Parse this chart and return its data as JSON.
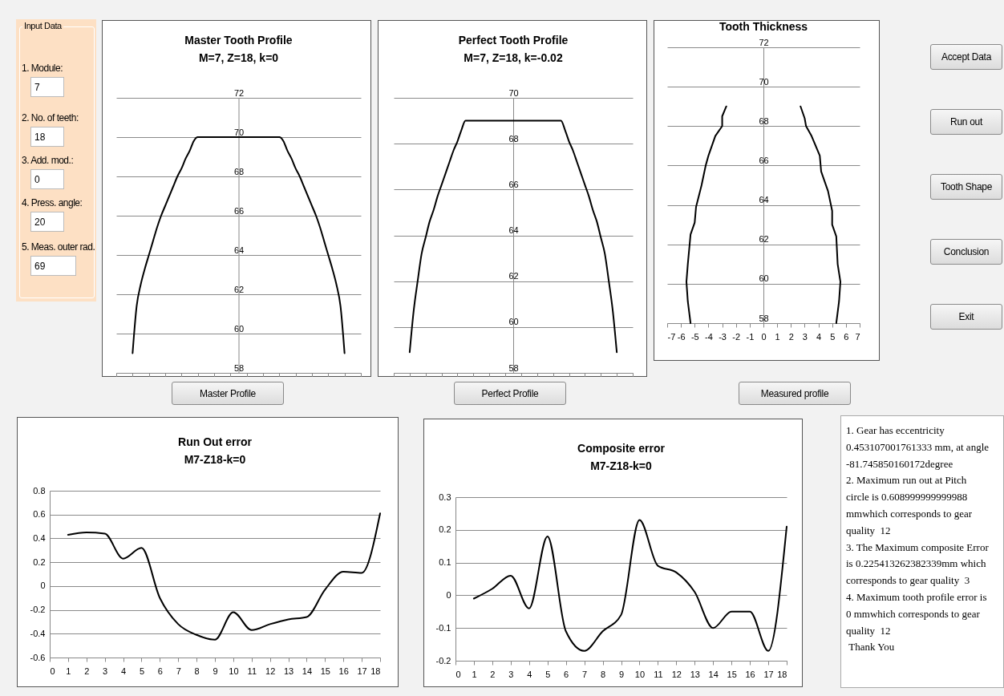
{
  "chart_data": [
    {
      "type": "other",
      "title": "Input Data",
      "annotations": [
        "1. Module:",
        "7",
        "2. No. of teeth:",
        "18",
        "3. Add. mod.:",
        "0",
        "4. Press. angle:",
        "20",
        "5. Meas. outer rad.",
        "69"
      ]
    },
    {
      "type": "line",
      "title": "Master Tooth Profile",
      "subtitle": "M=7, Z=18, k=0",
      "categories": [
        null,
        null,
        null,
        null,
        null,
        null,
        null,
        null,
        null,
        null,
        null,
        null,
        null,
        null,
        null,
        null,
        null,
        null,
        null,
        null,
        null,
        null,
        null,
        null,
        null,
        null,
        null,
        null,
        null,
        null,
        null,
        null,
        null,
        null,
        null,
        null,
        null,
        null,
        null,
        null,
        null,
        null,
        null,
        null,
        null,
        null,
        null,
        null,
        null,
        null,
        null,
        null,
        null,
        null,
        null,
        null,
        null,
        null,
        null,
        null,
        null
      ],
      "values": [
        null,
        null,
        null,
        null,
        59,
        61.4,
        62.5,
        63.3,
        64,
        64.7,
        65.4,
        66,
        66.5,
        67,
        67.5,
        68,
        68.4,
        68.9,
        69.3,
        69.8,
        70,
        70,
        70,
        70,
        70,
        70,
        70,
        70,
        70,
        70,
        70,
        70,
        70,
        70,
        70,
        70,
        70,
        70,
        70,
        70,
        70,
        69.8,
        69.3,
        68.9,
        68.4,
        68,
        67.5,
        67,
        66.5,
        66,
        65.4,
        64.7,
        64,
        63.3,
        62.5,
        61.4,
        59,
        null,
        null,
        null,
        null
      ],
      "color": "#000000",
      "ylim": [
        58,
        72
      ],
      "yticks": [
        58,
        60,
        62,
        64,
        66,
        68,
        70,
        72
      ],
      "grid": "y",
      "tick_labels": "y",
      "annotations": [
        "Master Profile"
      ]
    },
    {
      "type": "line",
      "title": "Perfect Tooth Profile",
      "subtitle": "M=7, Z=18, k=-0.02",
      "categories": [
        null,
        null,
        null,
        null,
        null,
        null,
        null,
        null,
        null,
        null,
        null,
        null,
        null,
        null,
        null,
        null,
        null,
        null,
        null,
        null,
        null,
        null,
        null,
        null,
        null,
        null,
        null,
        null,
        null,
        null,
        null,
        null,
        null,
        null,
        null,
        null,
        null,
        null,
        null,
        null,
        null,
        null,
        null,
        null,
        null,
        null,
        null,
        null,
        null,
        null,
        null,
        null,
        null,
        null,
        null,
        null,
        null,
        null,
        null,
        null,
        null
      ],
      "values": [
        null,
        null,
        null,
        null,
        58.9,
        60.7,
        62,
        63.2,
        63.9,
        64.6,
        65.1,
        65.7,
        66.2,
        66.7,
        67.2,
        67.7,
        68.1,
        68.6,
        69,
        69,
        69,
        69,
        69,
        69,
        69,
        69,
        69,
        69,
        69,
        69,
        69,
        69,
        69,
        69,
        69,
        69,
        69,
        69,
        69,
        69,
        69,
        69,
        69,
        68.6,
        68.1,
        67.7,
        67.2,
        66.7,
        66.2,
        65.7,
        65.1,
        64.6,
        63.9,
        63.2,
        62,
        60.7,
        58.9,
        null,
        null,
        null,
        null
      ],
      "color": "#000000",
      "ylim": [
        58,
        70
      ],
      "yticks": [
        58,
        60,
        62,
        64,
        66,
        68,
        70
      ],
      "grid": "y",
      "tick_labels": "y",
      "annotations": [
        "Perfect Profile"
      ]
    },
    {
      "type": "line",
      "title": "Tooth Thickness",
      "series": [
        {
          "color": "#000000",
          "x": [
            -2.7,
            -3,
            -3,
            -3.5,
            -4,
            -4.2,
            -4.5,
            -4.9,
            -5,
            -5.3,
            -5.5,
            -5.6,
            -5.5,
            -5.3
          ],
          "values": [
            69,
            68.5,
            68,
            67.5,
            66.5,
            66,
            65,
            63.9,
            63.1,
            62.5,
            61,
            60.1,
            59.1,
            58
          ]
        },
        {
          "color": "#000000",
          "x": [
            2.7,
            3,
            3.1,
            3.5,
            4.1,
            4.2,
            4.7,
            5,
            5,
            5.3,
            5.4,
            5.6,
            5.5,
            5.3
          ],
          "values": [
            69,
            68.4,
            68,
            67.5,
            66.5,
            65.7,
            64.7,
            63.7,
            63,
            62.4,
            61,
            60.1,
            59.1,
            58
          ]
        }
      ],
      "xlim": [
        -7,
        7
      ],
      "xticks": [
        -7,
        -6,
        -5,
        -4,
        -3,
        -2,
        -1,
        0,
        1,
        2,
        3,
        4,
        5,
        6,
        7
      ],
      "ylim": [
        58,
        72
      ],
      "yticks": [
        58,
        60,
        62,
        64,
        66,
        68,
        70,
        72
      ],
      "grid": "y",
      "annotations": [
        "Measured profile"
      ]
    },
    {
      "type": "other",
      "annotations": [
        "Accept Data",
        "Run out",
        "Tooth Shape",
        "Conclusion",
        "Exit"
      ]
    },
    {
      "type": "line",
      "title": "Run Out error",
      "subtitle": "M7-Z18-k=0",
      "x": [
        1,
        2,
        3,
        4,
        5,
        6,
        7,
        8,
        9,
        10,
        11,
        12,
        13,
        14,
        15,
        16,
        17,
        18
      ],
      "values": [
        0.43,
        0.45,
        0.44,
        0.23,
        0.32,
        -0.1,
        -0.32,
        -0.41,
        -0.45,
        -0.22,
        -0.37,
        -0.32,
        -0.28,
        -0.26,
        -0.03,
        0.12,
        0.11,
        0.61
      ],
      "color": "#000000",
      "xlim": [
        0,
        18
      ],
      "xticks": [
        0,
        1,
        2,
        3,
        4,
        5,
        6,
        7,
        8,
        9,
        10,
        11,
        12,
        13,
        14,
        15,
        16,
        17,
        18
      ],
      "ylim": [
        -0.6,
        0.8
      ],
      "yticks": [
        -0.6,
        -0.4,
        -0.2,
        0,
        0.2,
        0.4,
        0.6,
        0.8
      ],
      "grid": "y"
    },
    {
      "type": "line",
      "title": "Composite error",
      "subtitle": "M7-Z18-k=0",
      "x": [
        1,
        2,
        3,
        4,
        5,
        6,
        7,
        8,
        9,
        10,
        11,
        12,
        13,
        14,
        15,
        16,
        17,
        18
      ],
      "values": [
        -0.01,
        0.02,
        0.06,
        -0.04,
        0.18,
        -0.11,
        -0.17,
        -0.11,
        -0.06,
        0.23,
        0.09,
        0.07,
        0.01,
        -0.1,
        -0.05,
        -0.05,
        -0.17,
        0.21
      ],
      "color": "#000000",
      "xlim": [
        0,
        18
      ],
      "xticks": [
        0,
        1,
        2,
        3,
        4,
        5,
        6,
        7,
        8,
        9,
        10,
        11,
        12,
        13,
        14,
        15,
        16,
        17,
        18
      ],
      "ylim": [
        -0.2,
        0.3
      ],
      "yticks": [
        -0.2,
        -0.1,
        0,
        0.1,
        0.2,
        0.3
      ],
      "grid": "y"
    },
    {
      "type": "other",
      "annotations": [
        "1. Gear has eccentricity 0.453107001761333 mm, at angle -81.745850160172degree",
        "2. Maximum run out at Pitch circle is 0.608999999999988 mmwhich corresponds to gear quality  12",
        "3. The Maximum composite Error is 0.225413262382339mm which corresponds to gear quality  3",
        "4. Maximum tooth profile error is 0 mmwhich corresponds to gear quality  12",
        " Thank You"
      ]
    }
  ]
}
